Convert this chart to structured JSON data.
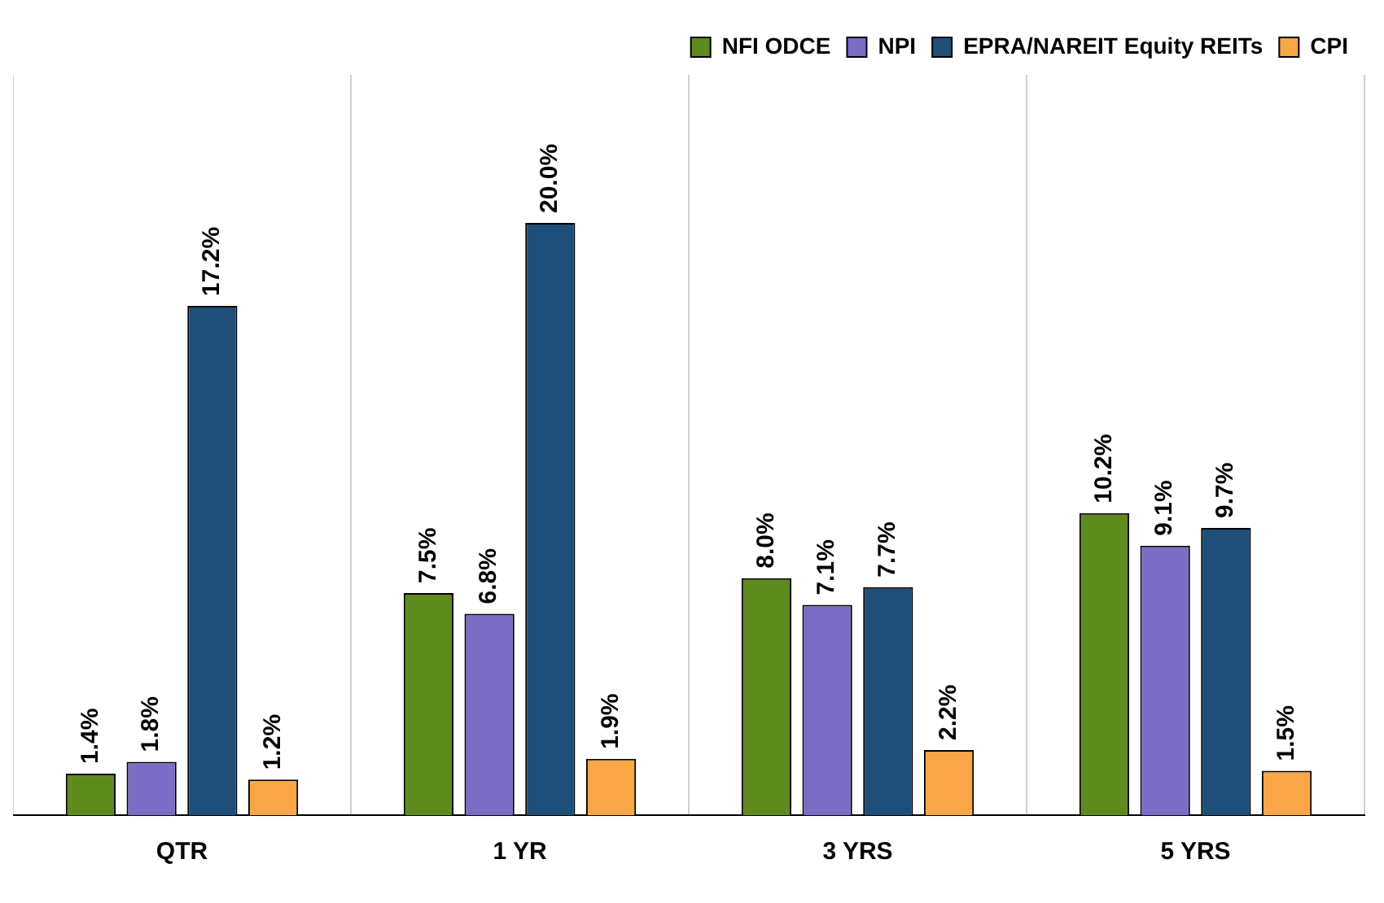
{
  "chart_data": {
    "type": "bar",
    "categories": [
      "QTR",
      "1 YR",
      "3 YRS",
      "5 YRS"
    ],
    "series": [
      {
        "name": "NFI ODCE",
        "color": "#5f8a1e",
        "values": [
          1.4,
          7.5,
          8.0,
          10.2
        ],
        "value_labels": [
          "1.4%",
          "7.5%",
          "8.0%",
          "10.2%"
        ]
      },
      {
        "name": "NPI",
        "color": "#7b6cc6",
        "values": [
          1.8,
          6.8,
          7.1,
          9.1
        ],
        "value_labels": [
          "1.8%",
          "6.8%",
          "7.1%",
          "9.1%"
        ]
      },
      {
        "name": "EPRA/NAREIT Equity REITs",
        "color": "#1f4e79",
        "values": [
          17.2,
          20.0,
          7.7,
          9.7
        ],
        "value_labels": [
          "17.2%",
          "20.0%",
          "7.7%",
          "9.7%"
        ]
      },
      {
        "name": "CPI",
        "color": "#f9a646",
        "values": [
          1.2,
          1.9,
          2.2,
          1.5
        ],
        "value_labels": [
          "1.2%",
          "1.9%",
          "2.2%",
          "1.5%"
        ]
      }
    ],
    "grid": "x",
    "legend": "top right",
    "tick_labels": "x"
  }
}
